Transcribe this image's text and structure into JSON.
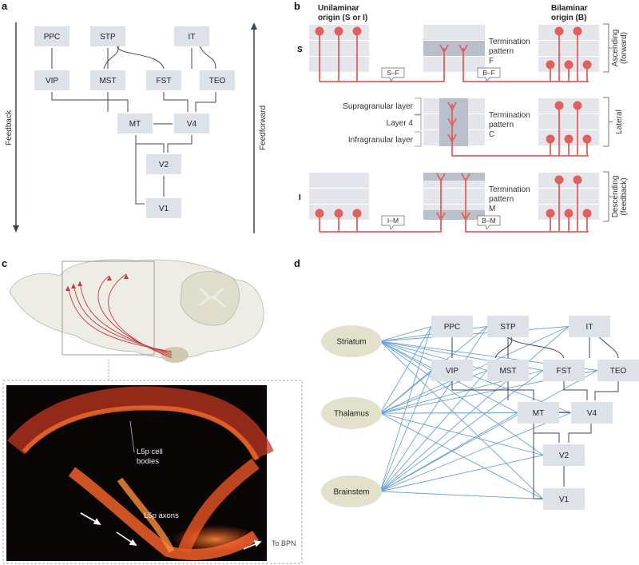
{
  "panels": {
    "a": "a",
    "b": "b",
    "c": "c",
    "d": "d"
  },
  "panel_a": {
    "areas": [
      "PPC",
      "STP",
      "IT",
      "VIP",
      "MST",
      "FST",
      "TEO",
      "MT",
      "V4",
      "V2",
      "V1"
    ],
    "feedback_label": "Feedback",
    "feedforward_label": "Feedforward"
  },
  "panel_b": {
    "unilaminar_heading": [
      "Unilaminar",
      "origin (S or I)"
    ],
    "bilaminar_heading": [
      "Bilaminar",
      "origin (B)"
    ],
    "row_s": "S",
    "row_i": "I",
    "layers": [
      "Supragranular layer",
      "Layer 4",
      "Infragranular layer"
    ],
    "patterns": [
      {
        "lines": [
          "Termination",
          "pattern",
          "F"
        ]
      },
      {
        "lines": [
          "Termination",
          "pattern",
          "C"
        ]
      },
      {
        "lines": [
          "Termination",
          "pattern",
          "M"
        ]
      }
    ],
    "tags": [
      "S–F",
      "B–F",
      "I–M",
      "B–M"
    ],
    "directions": [
      {
        "lines": [
          "Ascending",
          "(forward)"
        ]
      },
      {
        "lines": [
          "Lateral"
        ]
      },
      {
        "lines": [
          "Descending",
          "(feedback)"
        ]
      }
    ],
    "neuron_color": "#e0605c"
  },
  "panel_c": {
    "cell_bodies_label": [
      "L5p cell",
      "bodies"
    ],
    "axons_label": "L5p axons",
    "target_label": "To BPN"
  },
  "panel_d": {
    "subcortical": [
      "Striatum",
      "Thalamus",
      "Brainstem"
    ],
    "areas": [
      "PPC",
      "STP",
      "IT",
      "VIP",
      "MST",
      "FST",
      "TEO",
      "MT",
      "V4",
      "V2",
      "V1"
    ],
    "link_color": "#6aa1d3"
  }
}
